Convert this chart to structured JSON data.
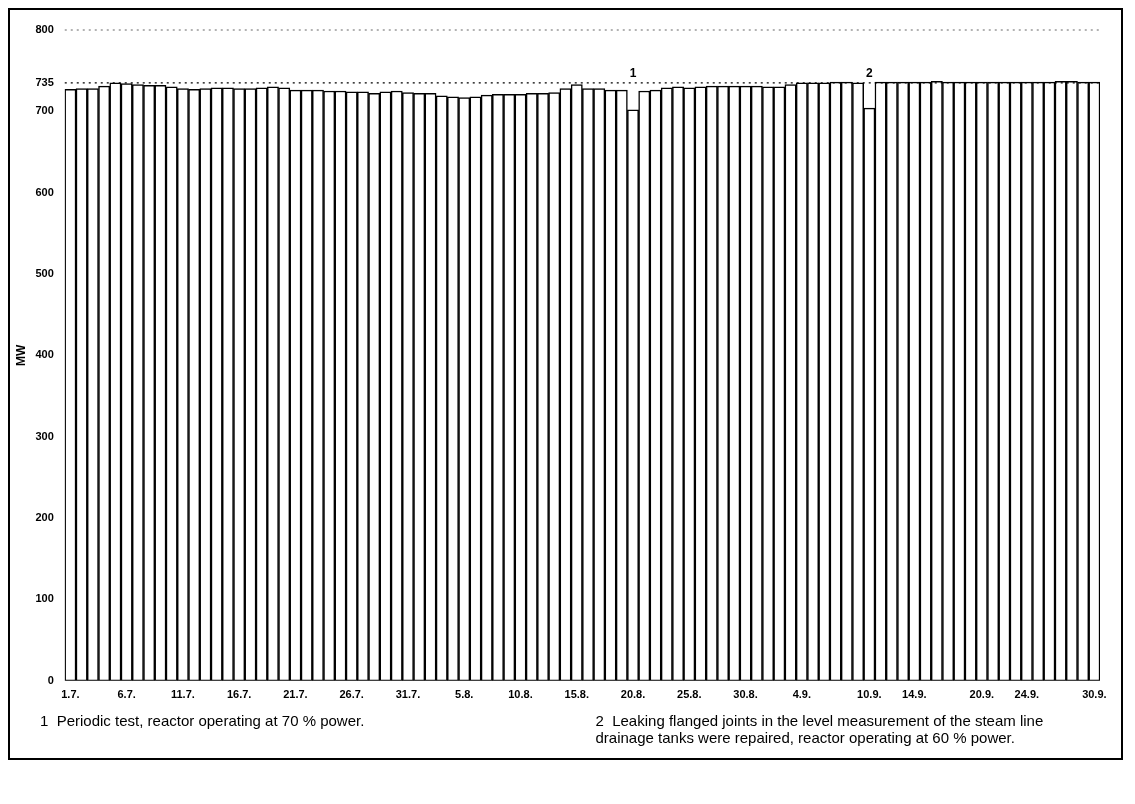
{
  "chart_data": {
    "type": "bar",
    "ylabel": "MW",
    "categories": [
      "1.7.",
      null,
      null,
      null,
      null,
      "6.7.",
      null,
      null,
      null,
      null,
      "11.7.",
      null,
      null,
      null,
      null,
      "16.7.",
      null,
      null,
      null,
      null,
      "21.7.",
      null,
      null,
      null,
      null,
      "26.7.",
      null,
      null,
      null,
      null,
      "31.7.",
      null,
      null,
      null,
      null,
      "5.8.",
      null,
      null,
      null,
      null,
      "10.8.",
      null,
      null,
      null,
      null,
      "15.8.",
      null,
      null,
      null,
      null,
      "20.8.",
      null,
      null,
      null,
      null,
      "25.8.",
      null,
      null,
      null,
      null,
      "30.8.",
      null,
      null,
      null,
      null,
      "4.9.",
      null,
      null,
      null,
      null,
      null,
      "10.9.",
      null,
      null,
      null,
      "14.9.",
      null,
      null,
      null,
      null,
      null,
      "20.9.",
      null,
      null,
      null,
      "24.9.",
      null,
      null,
      null,
      null,
      null,
      "30.9."
    ],
    "values": [
      727,
      728,
      728,
      731,
      735,
      734,
      733,
      732,
      732,
      730,
      728,
      727,
      728,
      729,
      729,
      728,
      728,
      729,
      730,
      729,
      726,
      726,
      726,
      725,
      725,
      724,
      724,
      722,
      724,
      725,
      723,
      722,
      722,
      719,
      718,
      717,
      718,
      720,
      721,
      721,
      721,
      722,
      722,
      723,
      728,
      733,
      728,
      728,
      726,
      726,
      702,
      725,
      726,
      729,
      730,
      729,
      730,
      731,
      731,
      731,
      731,
      731,
      730,
      730,
      733,
      735,
      735,
      735,
      736,
      736,
      735,
      704,
      736,
      736,
      736,
      736,
      736,
      737,
      736,
      736,
      736,
      736,
      736,
      736,
      736,
      736,
      736,
      736,
      737,
      737,
      736,
      736
    ],
    "color": "#ffffff",
    "ylim": [
      0,
      800
    ],
    "yticks": [
      0,
      100,
      200,
      300,
      400,
      500,
      600,
      700,
      735,
      800
    ],
    "grid": false,
    "ref_lines": [
      {
        "axis": "y",
        "value": 735,
        "line_style": "dotted"
      }
    ],
    "annotations": [
      {
        "text": "1",
        "x": "20.8.",
        "y": 735
      },
      {
        "text": "2",
        "x": "10.9.",
        "y": 735
      },
      "1  Periodic test, reactor operating at 70 % power.",
      "2  Leaking flanged joints in the level measurement of the steam line drainage tanks were repaired, reactor operating at 60 % power."
    ]
  }
}
